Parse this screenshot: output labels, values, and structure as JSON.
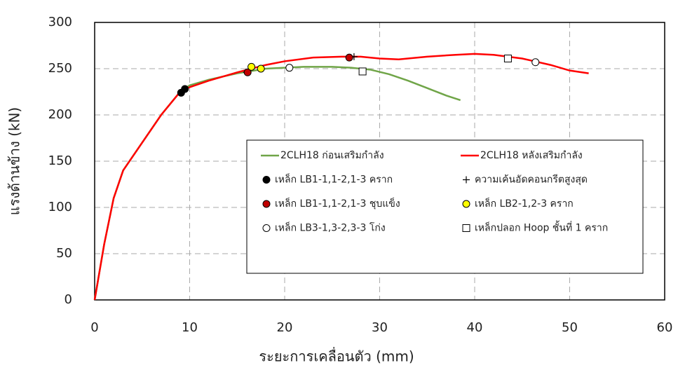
{
  "chart_data": {
    "type": "line",
    "xlabel": "ระยะการเคลื่อนตัว (mm)",
    "ylabel": "แรงด้านข้าง (kN)",
    "xlim": [
      0,
      60
    ],
    "xticks": [
      0,
      10,
      20,
      30,
      40,
      50,
      60
    ],
    "ylim": [
      0,
      300
    ],
    "yticks": [
      0,
      50,
      100,
      150,
      200,
      250,
      300
    ],
    "grid": true,
    "legend": "lower-right",
    "series": [
      {
        "name": "2CLH18 ก่อนเสริมกำลัง",
        "color": "#70a548",
        "marker": "line",
        "x": [
          0,
          1,
          2,
          3,
          5,
          7,
          9,
          10,
          12,
          15,
          18,
          20,
          22,
          25,
          27,
          29,
          31,
          33,
          35,
          37,
          38.5
        ],
        "values": [
          0,
          60,
          110,
          140,
          170,
          200,
          225,
          232,
          238,
          245,
          250,
          251,
          252,
          252,
          251,
          249,
          244,
          237,
          229,
          221,
          216
        ]
      },
      {
        "name": "2CLH18 หลังเสริมกำลัง",
        "color": "#ff0000",
        "marker": "line",
        "x": [
          0,
          1,
          2,
          3,
          5,
          7,
          9,
          10,
          12,
          15,
          18,
          20,
          23,
          26,
          28,
          30,
          32,
          35,
          38,
          40,
          42,
          45,
          48,
          50,
          52
        ],
        "values": [
          0,
          60,
          110,
          140,
          170,
          200,
          225,
          230,
          237,
          246,
          254,
          258,
          262,
          263,
          263,
          261,
          260,
          263,
          265,
          266,
          265,
          261,
          254,
          248,
          245
        ]
      },
      {
        "name": "เหล็ก LB1-1,1-2,1-3 คราก",
        "color": "#000000",
        "marker": "circle",
        "x": [
          9.1,
          9.5
        ],
        "values": [
          224,
          228
        ]
      },
      {
        "name": "ความเค้นอัดคอนกรีตสูงสุด",
        "color": "#000000",
        "marker": "plus",
        "x": [
          16,
          27.3
        ],
        "values": [
          246,
          263
        ]
      },
      {
        "name": "เหล็ก LB1-1,1-2,1-3 ชุบแข็ง",
        "color": "#c00000",
        "marker": "circle",
        "x": [
          16.1,
          26.8
        ],
        "values": [
          246,
          262
        ]
      },
      {
        "name": "เหล็ก LB2-1,2-3 คราก",
        "color": "#ffff00",
        "marker": "circle",
        "x": [
          16.5,
          17.5
        ],
        "values": [
          252,
          250
        ]
      },
      {
        "name": "เหล็ก LB3-1,3-2,3-3 โก่ง",
        "color": "#ffffff",
        "marker": "circle",
        "x": [
          20.5,
          46.4
        ],
        "values": [
          251,
          257
        ]
      },
      {
        "name": "เหล็กปลอก Hoop ชั้นที่ 1 คราก",
        "color": "#ffffff",
        "marker": "square",
        "x": [
          28.2,
          43.5
        ],
        "values": [
          247,
          261
        ]
      }
    ]
  }
}
